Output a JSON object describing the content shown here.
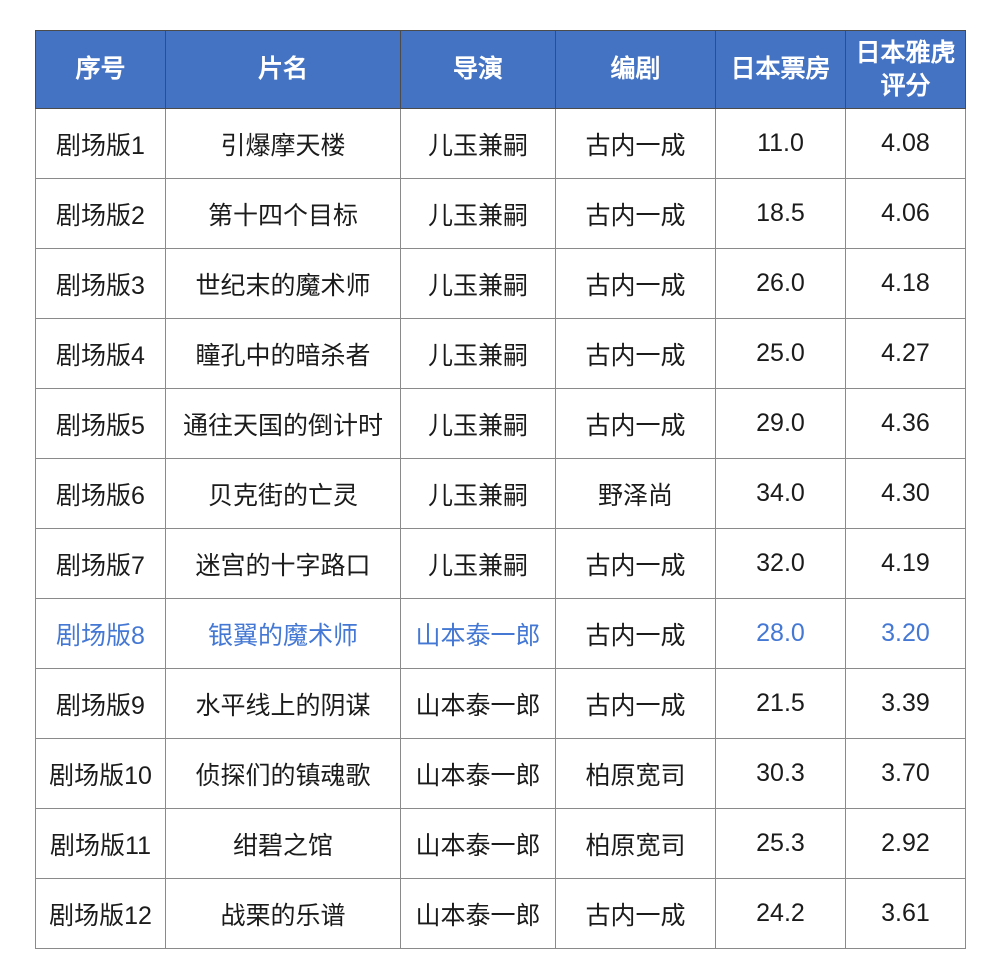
{
  "colors": {
    "header_background": "#4573c4",
    "header_text": "#ffffff",
    "body_text": "#1b1b1b",
    "highlight_row_text": "#4478d4",
    "grid_line": "#8a8a8a"
  },
  "table": {
    "columns": [
      {
        "key": "no",
        "label": "序号"
      },
      {
        "key": "title",
        "label": "片名"
      },
      {
        "key": "director",
        "label": "导演"
      },
      {
        "key": "writer",
        "label": "编剧"
      },
      {
        "key": "boxoffice",
        "label": "日本票房"
      },
      {
        "key": "rating",
        "label": "日本雅虎评分",
        "label_line1": "日本雅虎",
        "label_line2": "评分"
      }
    ],
    "rows": [
      {
        "no": "剧场版1",
        "title": "引爆摩天楼",
        "director": "儿玉兼嗣",
        "writer": "古内一成",
        "boxoffice": "11.0",
        "rating": "4.08",
        "highlight": false
      },
      {
        "no": "剧场版2",
        "title": "第十四个目标",
        "director": "儿玉兼嗣",
        "writer": "古内一成",
        "boxoffice": "18.5",
        "rating": "4.06",
        "highlight": false
      },
      {
        "no": "剧场版3",
        "title": "世纪末的魔术师",
        "director": "儿玉兼嗣",
        "writer": "古内一成",
        "boxoffice": "26.0",
        "rating": "4.18",
        "highlight": false
      },
      {
        "no": "剧场版4",
        "title": "瞳孔中的暗杀者",
        "director": "儿玉兼嗣",
        "writer": "古内一成",
        "boxoffice": "25.0",
        "rating": "4.27",
        "highlight": false
      },
      {
        "no": "剧场版5",
        "title": "通往天国的倒计时",
        "director": "儿玉兼嗣",
        "writer": "古内一成",
        "boxoffice": "29.0",
        "rating": "4.36",
        "highlight": false
      },
      {
        "no": "剧场版6",
        "title": "贝克街的亡灵",
        "director": "儿玉兼嗣",
        "writer": "野泽尚",
        "boxoffice": "34.0",
        "rating": "4.30",
        "highlight": false
      },
      {
        "no": "剧场版7",
        "title": "迷宫的十字路口",
        "director": "儿玉兼嗣",
        "writer": "古内一成",
        "boxoffice": "32.0",
        "rating": "4.19",
        "highlight": false
      },
      {
        "no": "剧场版8",
        "title": "银翼的魔术师",
        "director": "山本泰一郎",
        "writer": "古内一成",
        "boxoffice": "28.0",
        "rating": "3.20",
        "highlight": true,
        "highlight_excludes": "writer"
      },
      {
        "no": "剧场版9",
        "title": "水平线上的阴谋",
        "director": "山本泰一郎",
        "writer": "古内一成",
        "boxoffice": "21.5",
        "rating": "3.39",
        "highlight": false
      },
      {
        "no": "剧场版10",
        "title": "侦探们的镇魂歌",
        "director": "山本泰一郎",
        "writer": "柏原宽司",
        "boxoffice": "30.3",
        "rating": "3.70",
        "highlight": false
      },
      {
        "no": "剧场版11",
        "title": "绀碧之馆",
        "director": "山本泰一郎",
        "writer": "柏原宽司",
        "boxoffice": "25.3",
        "rating": "2.92",
        "highlight": false
      },
      {
        "no": "剧场版12",
        "title": "战栗的乐谱",
        "director": "山本泰一郎",
        "writer": "古内一成",
        "boxoffice": "24.2",
        "rating": "3.61",
        "highlight": false
      }
    ]
  },
  "chart_data": {
    "type": "table",
    "title": "",
    "columns": [
      "序号",
      "片名",
      "导演",
      "编剧",
      "日本票房",
      "日本雅虎评分"
    ],
    "rows": [
      [
        "剧场版1",
        "引爆摩天楼",
        "儿玉兼嗣",
        "古内一成",
        11.0,
        4.08
      ],
      [
        "剧场版2",
        "第十四个目标",
        "儿玉兼嗣",
        "古内一成",
        18.5,
        4.06
      ],
      [
        "剧场版3",
        "世纪末的魔术师",
        "儿玉兼嗣",
        "古内一成",
        26.0,
        4.18
      ],
      [
        "剧场版4",
        "瞳孔中的暗杀者",
        "儿玉兼嗣",
        "古内一成",
        25.0,
        4.27
      ],
      [
        "剧场版5",
        "通往天国的倒计时",
        "儿玉兼嗣",
        "古内一成",
        29.0,
        4.36
      ],
      [
        "剧场版6",
        "贝克街的亡灵",
        "儿玉兼嗣",
        "野泽尚",
        34.0,
        4.3
      ],
      [
        "剧场版7",
        "迷宫的十字路口",
        "儿玉兼嗣",
        "古内一成",
        32.0,
        4.19
      ],
      [
        "剧场版8",
        "银翼的魔术师",
        "山本泰一郎",
        "古内一成",
        28.0,
        3.2
      ],
      [
        "剧场版9",
        "水平线上的阴谋",
        "山本泰一郎",
        "古内一成",
        21.5,
        3.39
      ],
      [
        "剧场版10",
        "侦探们的镇魂歌",
        "山本泰一郎",
        "柏原宽司",
        30.3,
        3.7
      ],
      [
        "剧场版11",
        "绀碧之馆",
        "山本泰一郎",
        "柏原宽司",
        25.3,
        2.92
      ],
      [
        "剧场版12",
        "战栗的乐谱",
        "山本泰一郎",
        "古内一成",
        24.2,
        3.61
      ]
    ],
    "notes": "row 剧场版8 rendered in blue highlight except 编剧 cell"
  }
}
